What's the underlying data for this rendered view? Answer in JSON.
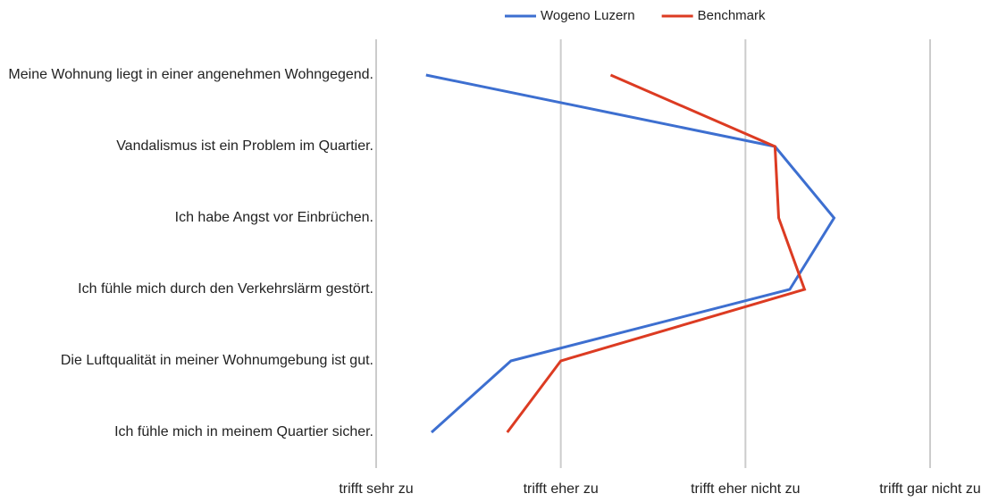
{
  "chart_data": {
    "type": "line",
    "orientation": "horizontal",
    "categories": [
      "Meine Wohnung liegt in einer angenehmen Wohngegend.",
      "Vandalismus ist ein Problem im Quartier.",
      "Ich habe Angst vor Einbrüchen.",
      "Ich fühle mich durch den Verkehrslärm gestört.",
      "Die Luftqualität in meiner Wohnumgebung ist gut.",
      "Ich fühle mich in meinem Quartier sicher."
    ],
    "series": [
      {
        "name": "Wogeno Luzern",
        "color": "#3d6fd0",
        "values": [
          1.27,
          3.16,
          3.48,
          3.24,
          1.73,
          1.3
        ]
      },
      {
        "name": "Benchmark",
        "color": "#dc3b22",
        "values": [
          2.27,
          3.16,
          3.18,
          3.32,
          2.0,
          1.71
        ]
      }
    ],
    "xlim": [
      1,
      4
    ],
    "xticks": [
      {
        "value": 1,
        "label": "trifft sehr zu"
      },
      {
        "value": 2,
        "label": "trifft eher zu"
      },
      {
        "value": 3,
        "label": "trifft eher nicht zu"
      },
      {
        "value": 4,
        "label": "trifft gar nicht zu"
      }
    ],
    "grid": true,
    "legend": "top"
  }
}
